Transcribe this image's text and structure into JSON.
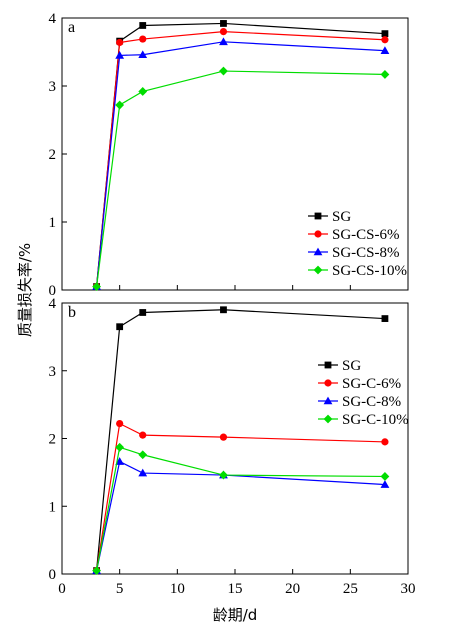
{
  "chart_data": {
    "type": "line",
    "xlabel": "龄期/d",
    "ylabel": "质量损失率/%",
    "xlim": [
      0,
      30
    ],
    "xticks": [
      0,
      5,
      10,
      15,
      20,
      25,
      30
    ],
    "grid": false,
    "panels": [
      {
        "label": "a",
        "ylim": [
          0,
          4
        ],
        "yticks": [
          0,
          1,
          2,
          3,
          4
        ],
        "legend_position": "right",
        "series": [
          {
            "name": "SG",
            "color": "#000000",
            "marker": "square",
            "x": [
              3,
              5,
              7,
              14,
              28
            ],
            "y": [
              0.05,
              3.66,
              3.89,
              3.92,
              3.77
            ]
          },
          {
            "name": "SG-CS-6%",
            "color": "#ff0000",
            "marker": "circle",
            "x": [
              3,
              5,
              7,
              14,
              28
            ],
            "y": [
              0.05,
              3.64,
              3.69,
              3.8,
              3.68
            ]
          },
          {
            "name": "SG-CS-8%",
            "color": "#0000ff",
            "marker": "triangle",
            "x": [
              3,
              5,
              7,
              14,
              28
            ],
            "y": [
              0.05,
              3.45,
              3.46,
              3.65,
              3.52
            ]
          },
          {
            "name": "SG-CS-10%",
            "color": "#00dd00",
            "marker": "diamond",
            "x": [
              3,
              5,
              7,
              14,
              28
            ],
            "y": [
              0.05,
              2.72,
              2.92,
              3.22,
              3.17
            ]
          }
        ]
      },
      {
        "label": "b",
        "ylim": [
          0,
          4
        ],
        "yticks": [
          0,
          1,
          2,
          3,
          4
        ],
        "legend_position": "right",
        "series": [
          {
            "name": "SG",
            "color": "#000000",
            "marker": "square",
            "x": [
              3,
              5,
              7,
              14,
              28
            ],
            "y": [
              0.05,
              3.65,
              3.86,
              3.9,
              3.77
            ]
          },
          {
            "name": "SG-C-6%",
            "color": "#ff0000",
            "marker": "circle",
            "x": [
              3,
              5,
              7,
              14,
              28
            ],
            "y": [
              0.05,
              2.22,
              2.05,
              2.02,
              1.95
            ]
          },
          {
            "name": "SG-C-8%",
            "color": "#0000ff",
            "marker": "triangle",
            "x": [
              3,
              5,
              7,
              14,
              28
            ],
            "y": [
              0.05,
              1.66,
              1.49,
              1.46,
              1.32
            ]
          },
          {
            "name": "SG-C-10%",
            "color": "#00dd00",
            "marker": "diamond",
            "x": [
              3,
              5,
              7,
              14,
              28
            ],
            "y": [
              0.05,
              1.87,
              1.76,
              1.46,
              1.44
            ]
          }
        ]
      }
    ]
  }
}
